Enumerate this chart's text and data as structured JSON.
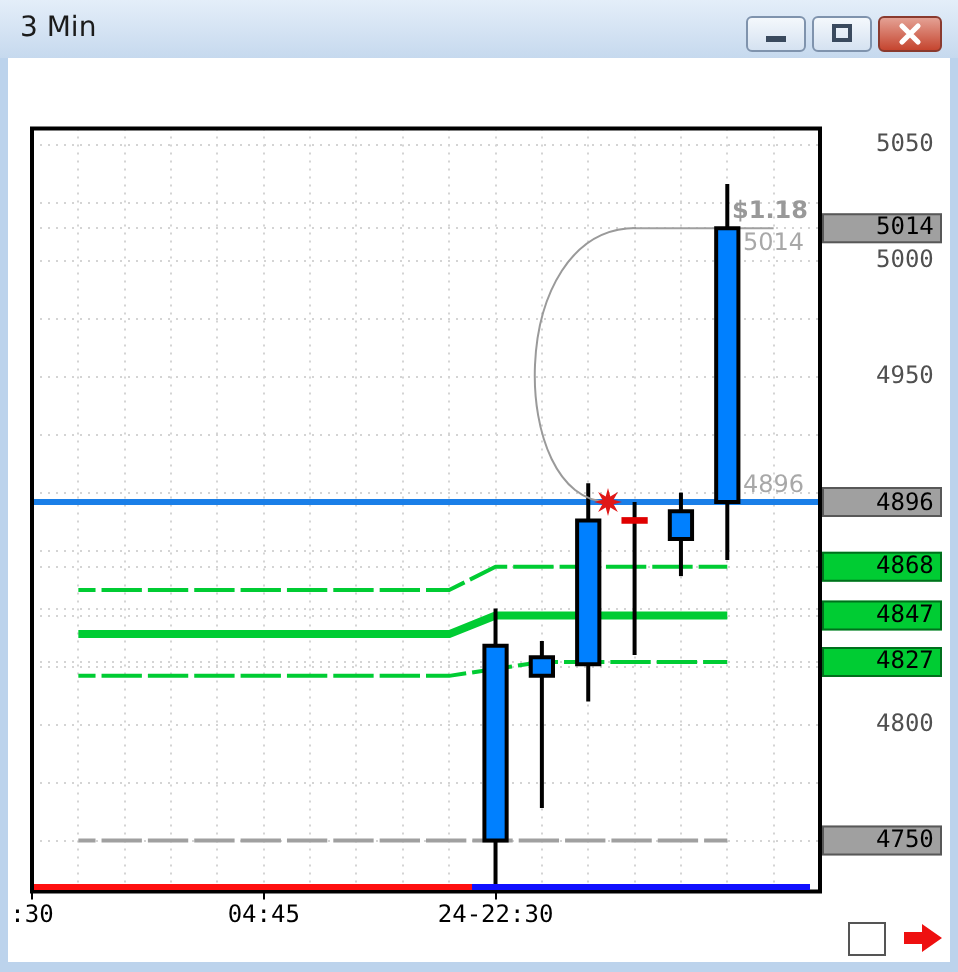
{
  "chart_data": {
    "type": "candlestick",
    "title": "3 Min",
    "categories": [
      ":30",
      null,
      null,
      null,
      null,
      "04:45",
      null,
      null,
      null,
      null,
      "24-22:30",
      null,
      null,
      null,
      null,
      null,
      null,
      null
    ],
    "ohlc": [
      null,
      null,
      null,
      null,
      null,
      null,
      null,
      null,
      null,
      null,
      [
        4750,
        4850,
        4728,
        4834
      ],
      [
        4821,
        4836,
        4764,
        4829
      ],
      [
        4826,
        4904,
        4810,
        4888
      ],
      [
        4889,
        4896,
        4830,
        4887
      ],
      [
        4880,
        4900,
        4864,
        4892
      ],
      [
        4896,
        5033,
        4871,
        5014
      ],
      null,
      null
    ],
    "colors": [
      null,
      null,
      null,
      null,
      null,
      null,
      null,
      null,
      null,
      null,
      "#0080ff",
      "#0080ff",
      "#0080ff",
      "#e00000",
      "#0080ff",
      "#0080ff",
      null,
      null
    ],
    "series": [
      {
        "type": "line",
        "color": "#00cc33",
        "line_style": "dashed",
        "values": [
          null,
          4858,
          4858,
          4858,
          4858,
          4858,
          4858,
          4858,
          4858,
          4858,
          4868,
          4868,
          null,
          4868,
          4868,
          4868,
          null,
          null
        ]
      },
      {
        "type": "line",
        "color": "#00cc33",
        "values": [
          null,
          4839,
          4839,
          4839,
          4839,
          4839,
          4839,
          4839,
          4839,
          4839,
          4847,
          4847,
          null,
          4847,
          4847,
          4847,
          null,
          null
        ]
      },
      {
        "type": "line",
        "color": "#00cc33",
        "line_style": "dashed",
        "values": [
          null,
          4821,
          4821,
          4821,
          4821,
          4821,
          4821,
          4821,
          4821,
          4821,
          null,
          4827,
          null,
          4827,
          4827,
          4827,
          null,
          null
        ]
      },
      {
        "type": "line",
        "color": "#a0a0a0",
        "line_style": "dashed",
        "values": [
          null,
          4750,
          4750,
          4750,
          4750,
          4750,
          4750,
          4750,
          4750,
          4750,
          4750,
          4750,
          4750,
          4750,
          4750,
          4750,
          null,
          null
        ]
      },
      {
        "type": "line",
        "color": "#a0a0a0",
        "line_style": "solid",
        "values": [
          null,
          null,
          null,
          null,
          null,
          null,
          null,
          null,
          null,
          null,
          null,
          null,
          null,
          5014,
          5014,
          null,
          5014,
          null
        ]
      }
    ],
    "ref_lines": [
      {
        "axis": "y",
        "value": 4896,
        "label": "4896",
        "color": "#1a7fe8"
      }
    ],
    "annotations": [
      {
        "text": "$1.18",
        "y": 5014
      },
      {
        "text": "5014",
        "y": 5014
      },
      {
        "text": "4896",
        "y": 4896
      }
    ],
    "ylim": [
      4728,
      5057
    ],
    "yticks": [
      {
        "value": 4750,
        "label": "4750"
      },
      {
        "value": 4775,
        "label": null
      },
      4800,
      {
        "value": 4825,
        "label": null
      },
      4827,
      4847,
      {
        "value": 4850,
        "label": null
      },
      4868,
      {
        "value": 4875,
        "label": null
      },
      {
        "value": 4900,
        "label": null
      },
      {
        "value": 4925,
        "label": null
      },
      4950,
      {
        "value": 4975,
        "label": null
      },
      5000,
      5014,
      {
        "value": 5025,
        "label": null
      },
      5050
    ],
    "grid": true
  }
}
